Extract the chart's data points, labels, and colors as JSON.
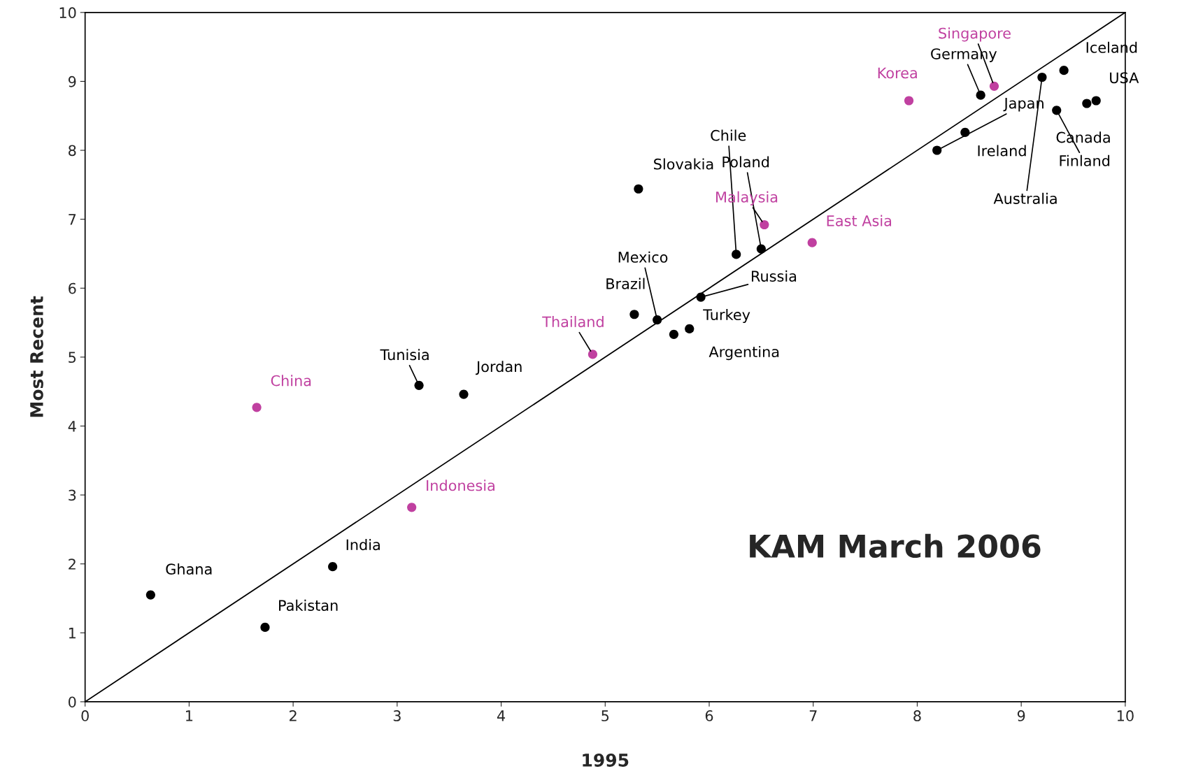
{
  "chart_data": {
    "type": "scatter",
    "xlabel": "1995",
    "ylabel": "Most Recent",
    "xlim": [
      0,
      10
    ],
    "ylim": [
      0,
      10
    ],
    "xticks": [
      0,
      1,
      2,
      3,
      4,
      5,
      6,
      7,
      8,
      9,
      10
    ],
    "yticks": [
      0,
      1,
      2,
      3,
      4,
      5,
      6,
      7,
      8,
      9,
      10
    ],
    "grid": false,
    "marker": "circle",
    "series": [
      {
        "color": "#000000",
        "x": [
          0.63,
          1.73,
          2.38,
          3.21,
          3.64,
          5.28,
          5.5,
          5.32,
          5.66,
          5.81,
          5.92,
          6.26,
          6.5,
          8.19,
          8.46,
          8.61,
          9.2,
          9.41,
          9.34,
          9.63,
          9.72
        ],
        "values": [
          1.55,
          1.08,
          1.96,
          4.59,
          4.46,
          5.62,
          5.54,
          7.44,
          5.33,
          5.41,
          5.87,
          6.49,
          6.57,
          8.0,
          8.26,
          8.8,
          9.06,
          9.16,
          8.58,
          8.68,
          8.72
        ]
      },
      {
        "color": "#c040a0",
        "x": [
          1.65,
          3.14,
          4.88,
          6.53,
          6.99,
          7.92,
          8.74
        ],
        "values": [
          4.27,
          2.82,
          5.04,
          6.92,
          6.66,
          8.72,
          8.93
        ]
      },
      {
        "type": "line",
        "color": "#000000",
        "x": [
          0,
          10
        ],
        "values": [
          0,
          10
        ],
        "marker": "none",
        "line_style": "solid"
      }
    ],
    "annotations": [
      {
        "text": "Ghana",
        "x": 0.63,
        "y": 1.55
      },
      {
        "text": "Pakistan",
        "x": 1.73,
        "y": 1.08
      },
      {
        "text": "India",
        "x": 2.38,
        "y": 1.96
      },
      {
        "text": "Tunisia",
        "x": 3.21,
        "y": 4.59
      },
      {
        "text": "Jordan",
        "x": 3.64,
        "y": 4.46
      },
      {
        "text": "Brazil",
        "x": 5.28,
        "y": 5.62
      },
      {
        "text": "Mexico",
        "x": 5.5,
        "y": 5.54
      },
      {
        "text": "Slovakia",
        "x": 5.32,
        "y": 7.44
      },
      {
        "text": "Argentina",
        "x": 5.66,
        "y": 5.33
      },
      {
        "text": "Turkey",
        "x": 5.81,
        "y": 5.41
      },
      {
        "text": "Russia",
        "x": 5.92,
        "y": 5.87
      },
      {
        "text": "Chile",
        "x": 6.26,
        "y": 6.49
      },
      {
        "text": "Poland",
        "x": 6.5,
        "y": 6.57
      },
      {
        "text": "Japan",
        "x": 8.19,
        "y": 8.0
      },
      {
        "text": "Ireland",
        "x": 8.46,
        "y": 8.26
      },
      {
        "text": "Germany",
        "x": 8.61,
        "y": 8.8
      },
      {
        "text": "Australia",
        "x": 9.2,
        "y": 9.06
      },
      {
        "text": "Iceland",
        "x": 9.41,
        "y": 9.16
      },
      {
        "text": "Finland",
        "x": 9.34,
        "y": 8.58
      },
      {
        "text": "Canada",
        "x": 9.63,
        "y": 8.68
      },
      {
        "text": "USA",
        "x": 9.72,
        "y": 8.72
      },
      {
        "text": "China",
        "x": 1.65,
        "y": 4.27
      },
      {
        "text": "Indonesia",
        "x": 3.14,
        "y": 2.82
      },
      {
        "text": "Thailand",
        "x": 4.88,
        "y": 5.04
      },
      {
        "text": "Malaysia",
        "x": 6.53,
        "y": 6.92
      },
      {
        "text": "East Asia",
        "x": 6.99,
        "y": 6.66
      },
      {
        "text": "Korea",
        "x": 7.92,
        "y": 8.72
      },
      {
        "text": "Singapore",
        "x": 8.74,
        "y": 8.93
      },
      "KAM March 2006"
    ]
  }
}
